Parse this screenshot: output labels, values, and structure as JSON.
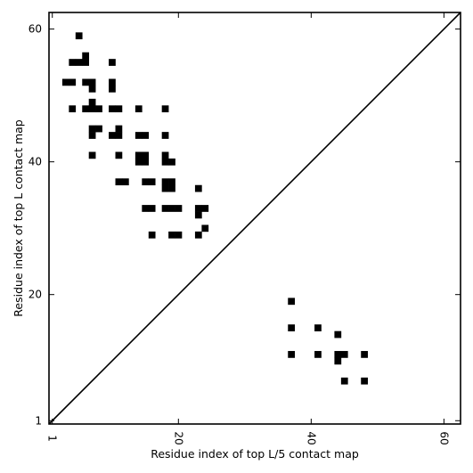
{
  "chart_data": {
    "type": "heatmap",
    "xlabel": "Residue index of top L/5 contact map",
    "ylabel": "Residue index of top L contact map",
    "xlim": [
      0.5,
      62.5
    ],
    "ylim": [
      0.5,
      62.5
    ],
    "xticks": [
      {
        "value": 1,
        "label": "1"
      },
      {
        "value": 20,
        "label": "20"
      },
      {
        "value": 40,
        "label": "40"
      },
      {
        "value": 60,
        "label": "60"
      }
    ],
    "yticks": [
      {
        "value": 1,
        "label": "1"
      },
      {
        "value": 20,
        "label": "20"
      },
      {
        "value": 40,
        "label": "40"
      },
      {
        "value": 60,
        "label": "60"
      }
    ],
    "diagonal": true,
    "cell_color": "#000000",
    "upper_triangle_contacts": [
      [
        5,
        59
      ],
      [
        4,
        55
      ],
      [
        5,
        55
      ],
      [
        6,
        55
      ],
      [
        6,
        56
      ],
      [
        10,
        55
      ],
      [
        3,
        52
      ],
      [
        4,
        52
      ],
      [
        6,
        52
      ],
      [
        7,
        52
      ],
      [
        7,
        51
      ],
      [
        10,
        52
      ],
      [
        10,
        51
      ],
      [
        4,
        48
      ],
      [
        6,
        48
      ],
      [
        7,
        48
      ],
      [
        8,
        48
      ],
      [
        7,
        49
      ],
      [
        10,
        48
      ],
      [
        11,
        48
      ],
      [
        14,
        48
      ],
      [
        18,
        48
      ],
      [
        7,
        45
      ],
      [
        8,
        45
      ],
      [
        7,
        44
      ],
      [
        10,
        44
      ],
      [
        11,
        44
      ],
      [
        11,
        45
      ],
      [
        14,
        44
      ],
      [
        15,
        44
      ],
      [
        18,
        44
      ],
      [
        7,
        41
      ],
      [
        11,
        41
      ],
      [
        14,
        41
      ],
      [
        15,
        41
      ],
      [
        14,
        40
      ],
      [
        15,
        40
      ],
      [
        18,
        41
      ],
      [
        18,
        40
      ],
      [
        19,
        40
      ],
      [
        11,
        37
      ],
      [
        12,
        37
      ],
      [
        15,
        37
      ],
      [
        16,
        37
      ],
      [
        18,
        37
      ],
      [
        19,
        37
      ],
      [
        18,
        36
      ],
      [
        19,
        36
      ],
      [
        23,
        36
      ],
      [
        15,
        33
      ],
      [
        16,
        33
      ],
      [
        18,
        33
      ],
      [
        19,
        33
      ],
      [
        20,
        33
      ],
      [
        23,
        33
      ],
      [
        24,
        33
      ],
      [
        23,
        32
      ],
      [
        24,
        30
      ],
      [
        16,
        29
      ],
      [
        19,
        29
      ],
      [
        20,
        29
      ],
      [
        23,
        29
      ]
    ],
    "lower_triangle_contacts": [
      [
        37,
        19
      ],
      [
        37,
        15
      ],
      [
        41,
        15
      ],
      [
        44,
        14
      ],
      [
        37,
        11
      ],
      [
        41,
        11
      ],
      [
        44,
        11
      ],
      [
        45,
        11
      ],
      [
        44,
        10
      ],
      [
        48,
        11
      ],
      [
        45,
        7
      ],
      [
        48,
        7
      ]
    ]
  }
}
